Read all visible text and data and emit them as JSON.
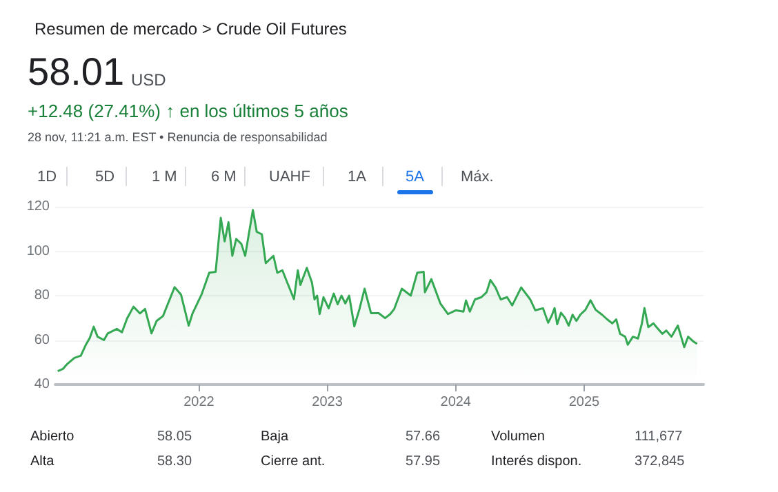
{
  "chart_data": {
    "type": "area",
    "title": "Resumen de mercado > Crude Oil Futures",
    "annotations": [
      "58.01",
      "USD",
      "+12.48 (27.41%) ↑ en los últimos 5 años",
      "28 nov, 11:21 a.m. EST • Renuncia de responsabilidad",
      "1D",
      "5D",
      "1 M",
      "6 M",
      "UAHF",
      "1A",
      "5A",
      "Máx.",
      "Abierto",
      "58.05",
      "Baja",
      "57.66",
      "Volumen",
      "111,677",
      "Alta",
      "58.30",
      "Cierre ant.",
      "57.95",
      "Interés dispon.",
      "372,845"
    ],
    "x": [
      2020.9,
      2020.94,
      2020.97,
      2021.03,
      2021.08,
      2021.12,
      2021.15,
      2021.18,
      2021.21,
      2021.26,
      2021.29,
      2021.36,
      2021.4,
      2021.44,
      2021.49,
      2021.54,
      2021.58,
      2021.61,
      2021.63,
      2021.67,
      2021.72,
      2021.81,
      2021.86,
      2021.92,
      2021.95,
      2022.02,
      2022.08,
      2022.13,
      2022.17,
      2022.2,
      2022.23,
      2022.26,
      2022.29,
      2022.33,
      2022.36,
      2022.42,
      2022.45,
      2022.49,
      2022.52,
      2022.58,
      2022.61,
      2022.65,
      2022.68,
      2022.74,
      2022.77,
      2022.79,
      2022.84,
      2022.88,
      2022.9,
      2022.92,
      2022.94,
      2022.97,
      2023.01,
      2023.05,
      2023.08,
      2023.11,
      2023.14,
      2023.17,
      2023.21,
      2023.25,
      2023.29,
      2023.34,
      2023.4,
      2023.45,
      2023.49,
      2023.52,
      2023.58,
      2023.65,
      2023.7,
      2023.75,
      2023.76,
      2023.81,
      2023.88,
      2023.94,
      2024.0,
      2024.06,
      2024.08,
      2024.11,
      2024.15,
      2024.2,
      2024.24,
      2024.27,
      2024.31,
      2024.35,
      2024.4,
      2024.44,
      2024.51,
      2024.58,
      2024.62,
      2024.68,
      2024.72,
      2024.75,
      2024.77,
      2024.79,
      2024.82,
      2024.85,
      2024.88,
      2024.91,
      2024.94,
      2024.97,
      2025.01,
      2025.05,
      2025.09,
      2025.14,
      2025.18,
      2025.22,
      2025.25,
      2025.28,
      2025.32,
      2025.34,
      2025.38,
      2025.42,
      2025.45,
      2025.47,
      2025.5,
      2025.54,
      2025.57,
      2025.61,
      2025.64,
      2025.68,
      2025.73,
      2025.78,
      2025.81,
      2025.85,
      2025.88
    ],
    "series": [
      {
        "color": "#34a853",
        "values": [
          46,
          47,
          49,
          52,
          53,
          58,
          61,
          66,
          61.5,
          60,
          63,
          65,
          63.5,
          69.7,
          75,
          72,
          74,
          67.5,
          63,
          68.6,
          70.8,
          83.8,
          80.5,
          66.5,
          72,
          80.5,
          90.3,
          90.7,
          115,
          104.4,
          113,
          97.9,
          105.5,
          103.3,
          97.9,
          118.5,
          108.7,
          107.6,
          94.6,
          97.9,
          90.3,
          91.4,
          87,
          78.4,
          91.4,
          84.8,
          92.5,
          85.9,
          78.3,
          80,
          71.7,
          79.3,
          74.3,
          80.9,
          76.1,
          80,
          76.5,
          80,
          66.2,
          73.9,
          83.1,
          72.1,
          72.1,
          69.9,
          71.7,
          73.9,
          83.1,
          80,
          90.3,
          90.7,
          81.5,
          87.4,
          76.5,
          71.7,
          73.4,
          72.8,
          77.8,
          72.8,
          78.3,
          79.3,
          81.5,
          87,
          83.7,
          78.3,
          79.3,
          75.6,
          83.7,
          78.3,
          73.4,
          74.3,
          67.8,
          71.3,
          74.4,
          67.1,
          72.3,
          70.1,
          66.5,
          71.4,
          68.6,
          71.4,
          73.6,
          77.9,
          73.6,
          71.4,
          69.3,
          67.5,
          69.3,
          62.8,
          61.5,
          57.9,
          61.5,
          60.7,
          67.5,
          74.4,
          65.8,
          67.5,
          65.4,
          62.8,
          64.3,
          61.5,
          66.5,
          56.8,
          61.5,
          59.4,
          58.3
        ]
      }
    ],
    "xlim": [
      2020.88,
      2025.93
    ],
    "xticks": [
      2022,
      2023,
      2024,
      2025
    ],
    "ylim": [
      40,
      120
    ],
    "yticks": [
      40,
      60,
      80,
      100,
      120
    ],
    "grid": "y"
  }
}
